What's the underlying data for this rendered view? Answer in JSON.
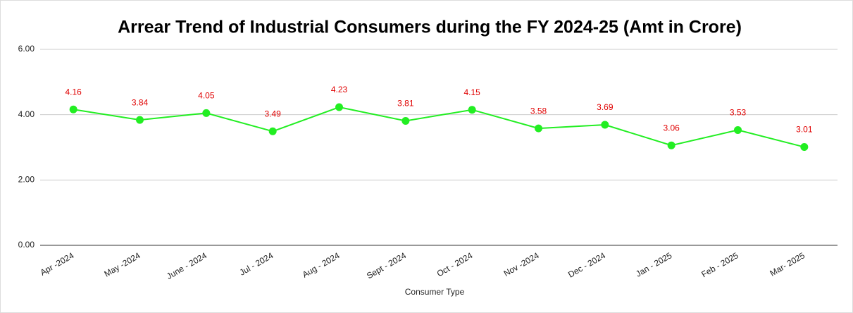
{
  "chart_data": {
    "type": "line",
    "title": "Arrear Trend of Industrial Consumers during the FY 2024-25 (Amt in Crore)",
    "x_label": "Consumer Type",
    "categories": [
      "Apr -2024",
      "May -2024",
      "June - 2024",
      "Jul - 2024",
      "Aug - 2024",
      "Sept - 2024",
      "Oct - 2024",
      "Nov -2024",
      "Dec - 2024",
      "Jan - 2025",
      "Feb - 2025",
      "Mar- 2025"
    ],
    "series": [
      {
        "color": "#22ee22",
        "values": [
          4.16,
          3.84,
          4.05,
          3.49,
          4.23,
          3.81,
          4.15,
          3.58,
          3.69,
          3.06,
          3.53,
          3.01
        ]
      }
    ],
    "ylim": [
      0,
      6
    ],
    "yticks": [
      {
        "value": 0,
        "label": "0.00"
      },
      {
        "value": 2,
        "label": "2.00"
      },
      {
        "value": 4,
        "label": "4.00"
      },
      {
        "value": 6,
        "label": "6.00"
      }
    ],
    "grid": true
  }
}
